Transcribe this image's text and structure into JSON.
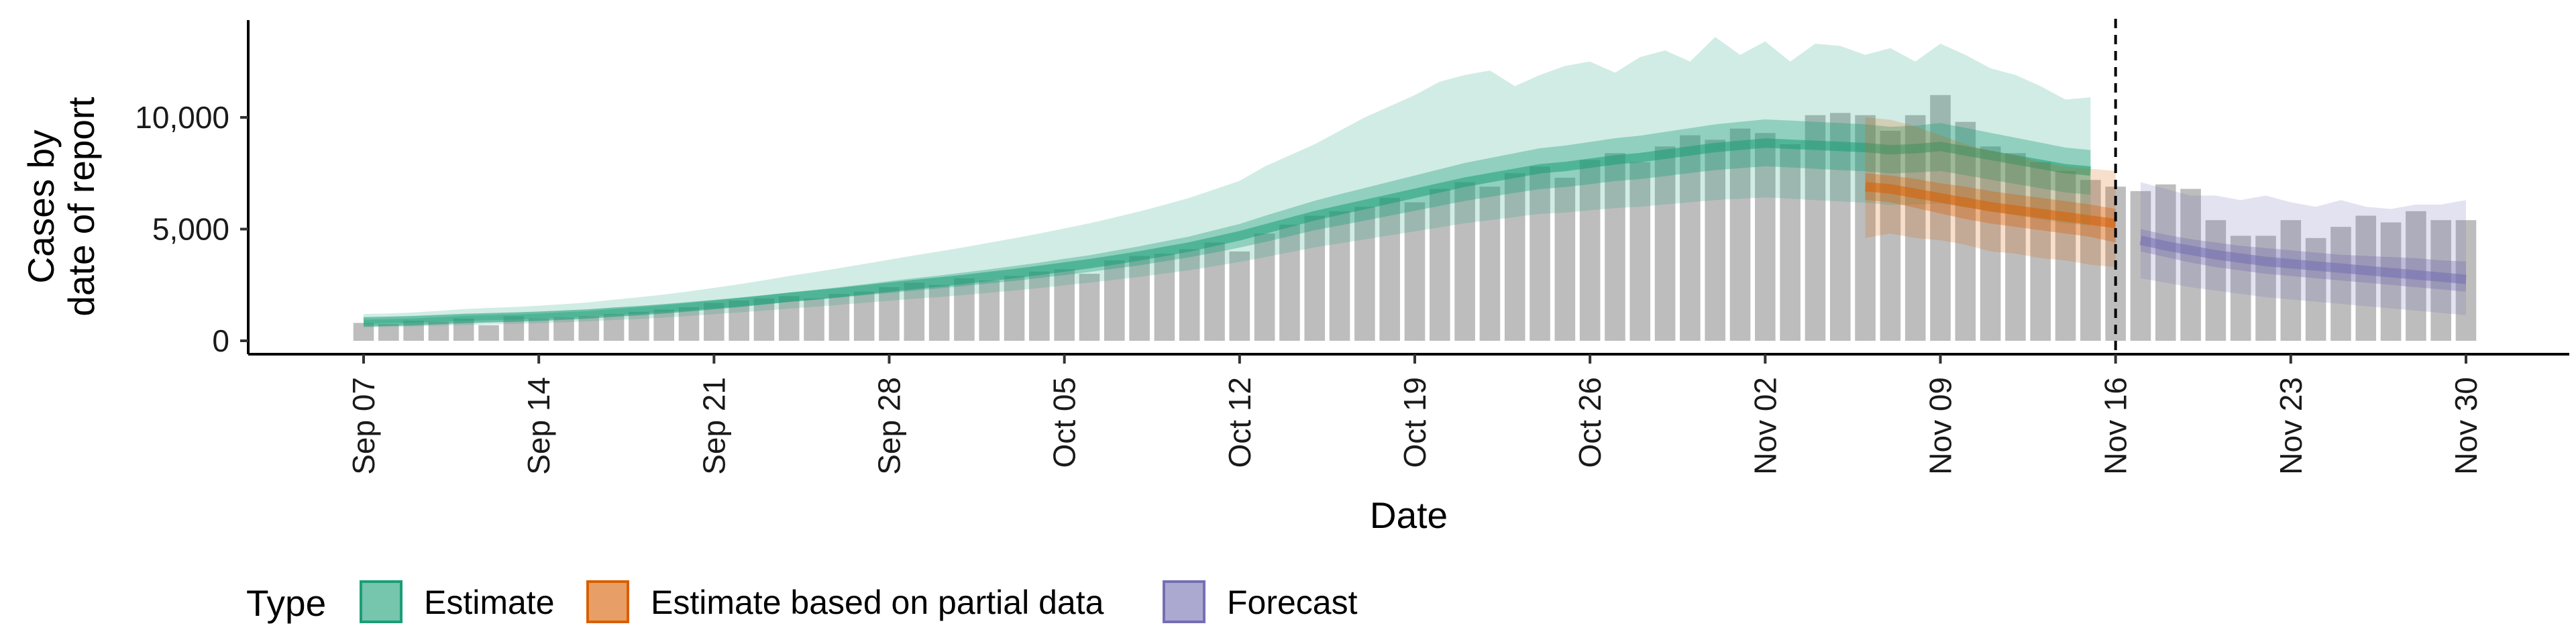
{
  "chart_data": {
    "type": "bar",
    "title": "",
    "xlabel": "Date",
    "ylabel_lines": [
      "Cases by",
      "date of report"
    ],
    "x_start": "2020-09-07",
    "ylim": [
      0,
      14000
    ],
    "y_ticks": [
      0,
      5000,
      10000
    ],
    "y_tick_labels": [
      "0",
      "5,000",
      "10,000"
    ],
    "x_tick_labels": [
      "Sep 07",
      "Sep 14",
      "Sep 21",
      "Sep 28",
      "Oct 05",
      "Oct 12",
      "Oct 19",
      "Oct 26",
      "Nov 02",
      "Nov 09",
      "Nov 16",
      "Nov 23",
      "Nov 30"
    ],
    "x_tick_dates": [
      "2020-09-07",
      "2020-09-14",
      "2020-09-21",
      "2020-09-28",
      "2020-10-05",
      "2020-10-12",
      "2020-10-19",
      "2020-10-26",
      "2020-11-02",
      "2020-11-09",
      "2020-11-16",
      "2020-11-23",
      "2020-11-30"
    ],
    "vline_date": "2020-11-16",
    "grid": false,
    "legend_position": "bottom-left",
    "legend": {
      "title": "Type",
      "items": [
        {
          "label": "Estimate",
          "color": "#1b9e77"
        },
        {
          "label": "Estimate based on partial data",
          "color": "#d95f02"
        },
        {
          "label": "Forecast",
          "color": "#7570b3"
        }
      ]
    },
    "bar_color": "#bdbdbd",
    "bars": {
      "start_date": "2020-09-07",
      "values": [
        800,
        750,
        900,
        850,
        1000,
        700,
        1100,
        1000,
        1050,
        1100,
        1200,
        1300,
        1400,
        1500,
        1700,
        1800,
        1900,
        2000,
        1900,
        2100,
        2200,
        2400,
        2600,
        2500,
        2800,
        2700,
        2900,
        3100,
        3200,
        3000,
        3600,
        3800,
        3900,
        4100,
        4400,
        4000,
        4800,
        5200,
        5600,
        5800,
        6000,
        6400,
        6200,
        6800,
        7100,
        6900,
        7500,
        7800,
        7300,
        8100,
        8400,
        8000,
        8700,
        9200,
        9000,
        9500,
        9300,
        8800,
        10100,
        10200,
        10100,
        9400,
        10100,
        11000,
        9800,
        8700,
        8400,
        8000,
        7600,
        7200,
        6900,
        6700,
        7000,
        6800,
        5400,
        4700,
        4700,
        5400,
        4600,
        5100,
        5600,
        5300,
        5800,
        5400,
        5400
      ],
      "total_series": 71
    },
    "series": [
      {
        "name": "Estimate",
        "color": "#1b9e77",
        "start_date": "2020-09-07",
        "median": [
          850,
          870,
          900,
          950,
          1000,
          1030,
          1060,
          1100,
          1150,
          1200,
          1280,
          1350,
          1430,
          1520,
          1620,
          1720,
          1830,
          1950,
          2050,
          2160,
          2280,
          2400,
          2520,
          2630,
          2750,
          2880,
          3010,
          3150,
          3300,
          3450,
          3620,
          3800,
          4000,
          4200,
          4450,
          4700,
          5000,
          5300,
          5600,
          5850,
          6100,
          6350,
          6600,
          6850,
          7100,
          7300,
          7500,
          7700,
          7800,
          7950,
          8100,
          8200,
          8350,
          8500,
          8650,
          8750,
          8850,
          8800,
          8750,
          8700,
          8650,
          8550,
          8600,
          8700,
          8500,
          8300,
          8100,
          7900,
          7700,
          7600
        ],
        "inner_lo": [
          760,
          780,
          810,
          850,
          890,
          920,
          950,
          990,
          1030,
          1080,
          1150,
          1210,
          1280,
          1360,
          1450,
          1540,
          1640,
          1740,
          1830,
          1930,
          2040,
          2140,
          2250,
          2350,
          2450,
          2570,
          2680,
          2810,
          2940,
          3080,
          3230,
          3380,
          3560,
          3740,
          3950,
          4170,
          4420,
          4680,
          4950,
          5160,
          5380,
          5600,
          5820,
          6040,
          6260,
          6440,
          6620,
          6790,
          6880,
          7010,
          7150,
          7240,
          7370,
          7510,
          7640,
          7730,
          7810,
          7760,
          7700,
          7640,
          7590,
          7490,
          7530,
          7600,
          7410,
          7210,
          7020,
          6830,
          6640,
          6540
        ],
        "inner_hi": [
          950,
          970,
          1000,
          1060,
          1120,
          1150,
          1180,
          1220,
          1280,
          1330,
          1420,
          1500,
          1590,
          1690,
          1800,
          1910,
          2030,
          2160,
          2280,
          2400,
          2530,
          2670,
          2800,
          2920,
          3060,
          3200,
          3350,
          3500,
          3670,
          3830,
          4030,
          4230,
          4450,
          4670,
          4950,
          5230,
          5590,
          5930,
          6270,
          6560,
          6840,
          7120,
          7400,
          7680,
          7960,
          8180,
          8400,
          8620,
          8740,
          8900,
          9070,
          9180,
          9350,
          9520,
          9690,
          9800,
          9910,
          9860,
          9800,
          9750,
          9690,
          9580,
          9630,
          9750,
          9530,
          9310,
          9090,
          8870,
          8650,
          8540
        ],
        "outer_lo": [
          600,
          620,
          640,
          680,
          710,
          730,
          760,
          790,
          830,
          870,
          930,
          980,
          1040,
          1110,
          1190,
          1270,
          1350,
          1440,
          1520,
          1610,
          1700,
          1790,
          1880,
          1960,
          2050,
          2150,
          2250,
          2360,
          2480,
          2600,
          2730,
          2860,
          3010,
          3160,
          3340,
          3530,
          3740,
          3960,
          4180,
          4360,
          4540,
          4720,
          4900,
          5080,
          5260,
          5400,
          5540,
          5680,
          5740,
          5840,
          5940,
          6000,
          6100,
          6200,
          6300,
          6360,
          6420,
          6360,
          6300,
          6240,
          6180,
          6080,
          6100,
          6150,
          5980,
          5800,
          5620,
          5440,
          5260,
          5160
        ],
        "outer_hi": [
          1200,
          1220,
          1270,
          1340,
          1420,
          1470,
          1510,
          1570,
          1640,
          1720,
          1840,
          1950,
          2070,
          2210,
          2370,
          2530,
          2710,
          2900,
          3070,
          3250,
          3440,
          3630,
          3820,
          4000,
          4190,
          4390,
          4590,
          4800,
          5030,
          5260,
          5520,
          5790,
          6090,
          6400,
          6780,
          7160,
          7800,
          8300,
          8800,
          9400,
          10000,
          10500,
          11000,
          11600,
          11900,
          12100,
          11400,
          11900,
          12300,
          12500,
          12000,
          12700,
          13000,
          12500,
          13600,
          12800,
          13400,
          12500,
          13300,
          13200,
          12800,
          13100,
          12500,
          13300,
          12800,
          12200,
          11900,
          11400,
          10800,
          10900
        ]
      },
      {
        "name": "Estimate based on partial data",
        "color": "#d95f02",
        "start_date": "2020-11-06",
        "median": [
          6900,
          6800,
          6600,
          6400,
          6200,
          6000,
          5850,
          5700,
          5550,
          5400,
          5250
        ],
        "inner_lo": [
          6300,
          6200,
          5950,
          5700,
          5450,
          5250,
          5100,
          4950,
          4800,
          4650,
          4400
        ],
        "inner_hi": [
          7500,
          7400,
          7250,
          7050,
          6900,
          6700,
          6550,
          6400,
          6250,
          6100,
          5900
        ],
        "outer_lo": [
          4600,
          4800,
          4600,
          4500,
          4300,
          4000,
          3900,
          3700,
          3600,
          3400,
          3300
        ],
        "outer_hi": [
          10000,
          9900,
          9600,
          9200,
          8800,
          8500,
          8300,
          8000,
          7800,
          7700,
          7600
        ]
      },
      {
        "name": "Forecast",
        "color": "#7570b3",
        "start_date": "2020-11-17",
        "median": [
          4500,
          4250,
          4050,
          3850,
          3700,
          3550,
          3450,
          3350,
          3250,
          3150,
          3050,
          2950,
          2850,
          2750
        ],
        "inner_lo": [
          4000,
          3750,
          3500,
          3300,
          3150,
          3000,
          2900,
          2800,
          2700,
          2600,
          2500,
          2400,
          2300,
          2200
        ],
        "inner_hi": [
          5000,
          4750,
          4550,
          4400,
          4250,
          4150,
          4050,
          3950,
          3850,
          3800,
          3750,
          3700,
          3600,
          3550
        ],
        "outer_lo": [
          2800,
          2600,
          2400,
          2250,
          2100,
          1950,
          1850,
          1750,
          1650,
          1550,
          1450,
          1350,
          1250,
          1150
        ],
        "outer_hi": [
          7100,
          6800,
          6500,
          6500,
          6300,
          6500,
          6200,
          6000,
          6300,
          6000,
          5900,
          6100,
          6100,
          6300
        ]
      }
    ]
  }
}
